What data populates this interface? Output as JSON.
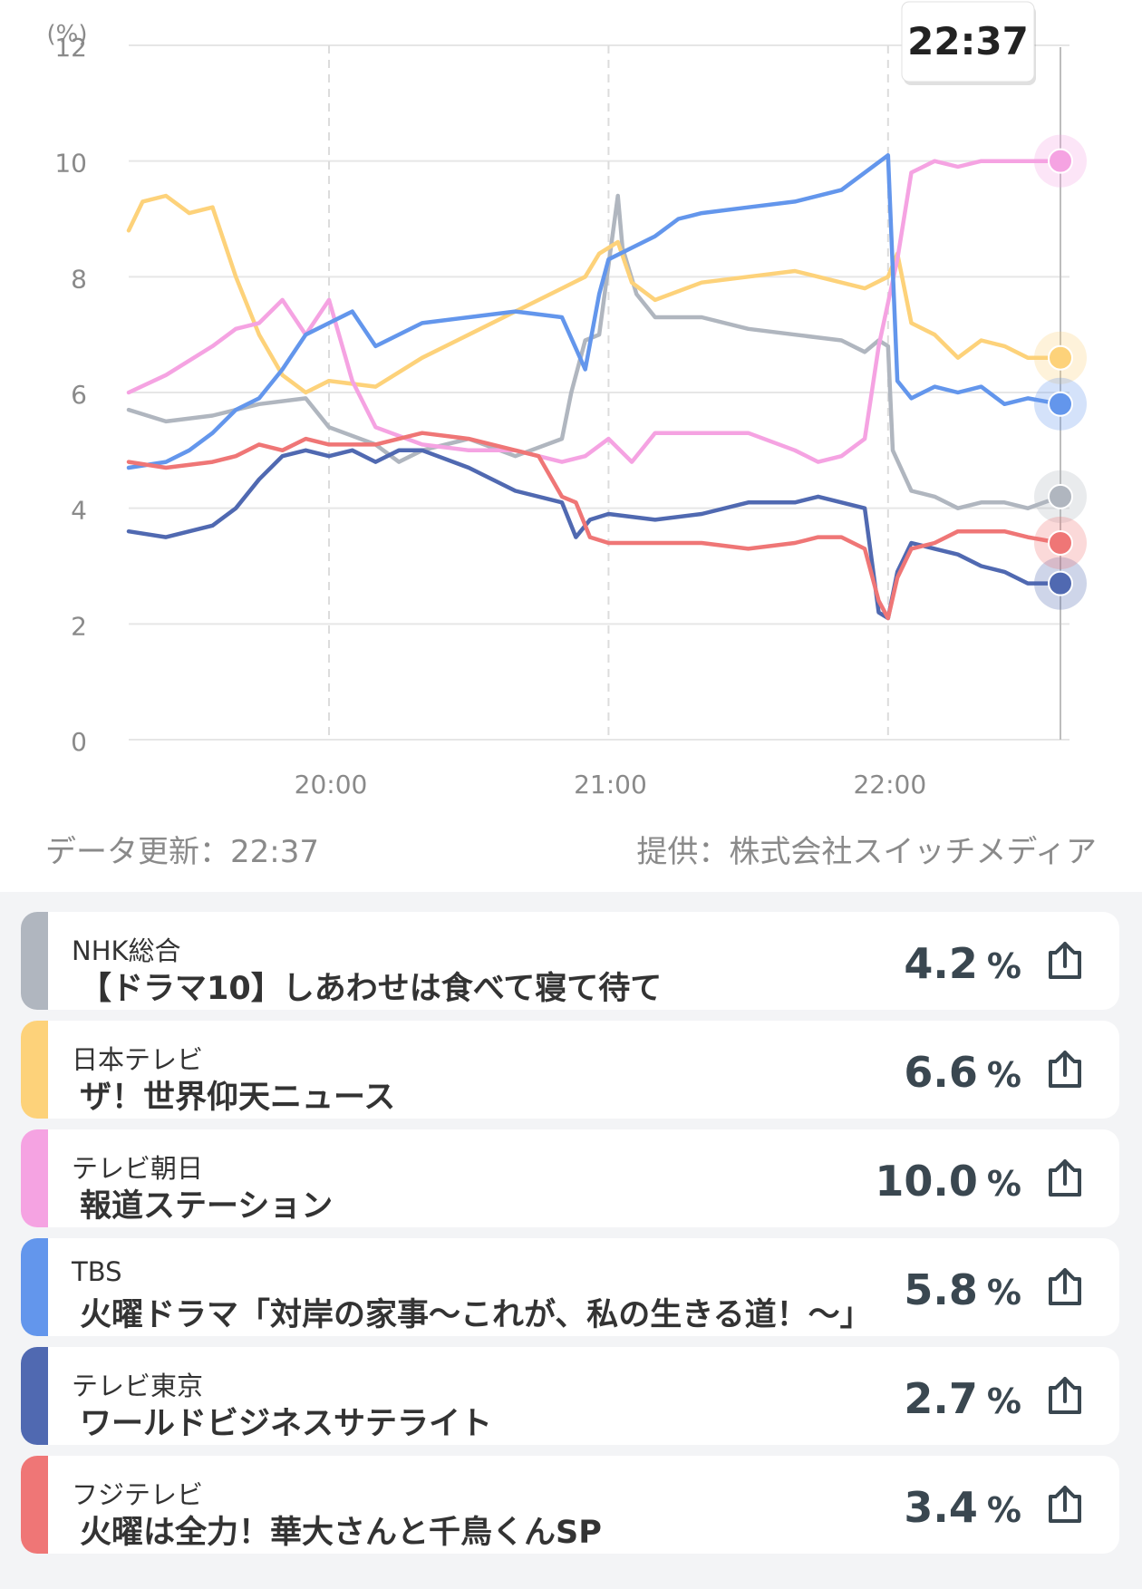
{
  "header": {
    "current_time": "22:37"
  },
  "footer": {
    "update": "データ更新：22:37",
    "provider": "提供：株式会社スイッチメディア"
  },
  "chart_data": {
    "type": "line",
    "ylabel": "(%)",
    "ylim": [
      0,
      12
    ],
    "yticks": [
      "0",
      "2",
      "4",
      "6",
      "8",
      "10",
      "12"
    ],
    "xticks": [
      {
        "label": "20:00",
        "t": 1200
      },
      {
        "label": "21:00",
        "t": 1260
      },
      {
        "label": "22:00",
        "t": 1320
      }
    ],
    "x_range_minutes": [
      1157,
      1357
    ],
    "cursor": {
      "label": "22:37",
      "t": 1357
    },
    "grid": true,
    "series": [
      {
        "name": "NHK総合",
        "color": "#b0b6bf",
        "points": [
          [
            1157,
            5.7
          ],
          [
            1165,
            5.5
          ],
          [
            1175,
            5.6
          ],
          [
            1185,
            5.8
          ],
          [
            1195,
            5.9
          ],
          [
            1200,
            5.4
          ],
          [
            1210,
            5.1
          ],
          [
            1215,
            4.8
          ],
          [
            1220,
            5.0
          ],
          [
            1230,
            5.2
          ],
          [
            1240,
            4.9
          ],
          [
            1250,
            5.2
          ],
          [
            1252,
            6.0
          ],
          [
            1255,
            6.9
          ],
          [
            1258,
            7.0
          ],
          [
            1260,
            8.2
          ],
          [
            1262,
            9.4
          ],
          [
            1263,
            8.5
          ],
          [
            1266,
            7.7
          ],
          [
            1270,
            7.3
          ],
          [
            1280,
            7.3
          ],
          [
            1290,
            7.1
          ],
          [
            1300,
            7.0
          ],
          [
            1310,
            6.9
          ],
          [
            1315,
            6.7
          ],
          [
            1318,
            6.9
          ],
          [
            1320,
            6.8
          ],
          [
            1321,
            5.0
          ],
          [
            1325,
            4.3
          ],
          [
            1330,
            4.2
          ],
          [
            1335,
            4.0
          ],
          [
            1340,
            4.1
          ],
          [
            1345,
            4.1
          ],
          [
            1350,
            4.0
          ],
          [
            1357,
            4.2
          ]
        ]
      },
      {
        "name": "日本テレビ",
        "color": "#fdd27a",
        "points": [
          [
            1157,
            8.8
          ],
          [
            1160,
            9.3
          ],
          [
            1165,
            9.4
          ],
          [
            1170,
            9.1
          ],
          [
            1175,
            9.2
          ],
          [
            1180,
            8.0
          ],
          [
            1185,
            7.0
          ],
          [
            1190,
            6.3
          ],
          [
            1195,
            6.0
          ],
          [
            1200,
            6.2
          ],
          [
            1210,
            6.1
          ],
          [
            1220,
            6.6
          ],
          [
            1230,
            7.0
          ],
          [
            1240,
            7.4
          ],
          [
            1250,
            7.8
          ],
          [
            1255,
            8.0
          ],
          [
            1258,
            8.4
          ],
          [
            1262,
            8.6
          ],
          [
            1265,
            7.9
          ],
          [
            1270,
            7.6
          ],
          [
            1280,
            7.9
          ],
          [
            1290,
            8.0
          ],
          [
            1300,
            8.1
          ],
          [
            1310,
            7.9
          ],
          [
            1315,
            7.8
          ],
          [
            1320,
            8.0
          ],
          [
            1322,
            8.4
          ],
          [
            1325,
            7.2
          ],
          [
            1330,
            7.0
          ],
          [
            1335,
            6.6
          ],
          [
            1340,
            6.9
          ],
          [
            1345,
            6.8
          ],
          [
            1350,
            6.6
          ],
          [
            1357,
            6.6
          ]
        ]
      },
      {
        "name": "テレビ朝日",
        "color": "#f5a3e2",
        "points": [
          [
            1157,
            6.0
          ],
          [
            1165,
            6.3
          ],
          [
            1175,
            6.8
          ],
          [
            1180,
            7.1
          ],
          [
            1185,
            7.2
          ],
          [
            1190,
            7.6
          ],
          [
            1195,
            7.0
          ],
          [
            1200,
            7.6
          ],
          [
            1205,
            6.2
          ],
          [
            1210,
            5.4
          ],
          [
            1220,
            5.1
          ],
          [
            1230,
            5.0
          ],
          [
            1240,
            5.0
          ],
          [
            1250,
            4.8
          ],
          [
            1255,
            4.9
          ],
          [
            1260,
            5.2
          ],
          [
            1265,
            4.8
          ],
          [
            1270,
            5.3
          ],
          [
            1280,
            5.3
          ],
          [
            1290,
            5.3
          ],
          [
            1300,
            5.0
          ],
          [
            1305,
            4.8
          ],
          [
            1310,
            4.9
          ],
          [
            1315,
            5.2
          ],
          [
            1318,
            6.8
          ],
          [
            1322,
            8.3
          ],
          [
            1325,
            9.8
          ],
          [
            1330,
            10.0
          ],
          [
            1335,
            9.9
          ],
          [
            1340,
            10.0
          ],
          [
            1345,
            10.0
          ],
          [
            1350,
            10.0
          ],
          [
            1357,
            10.0
          ]
        ]
      },
      {
        "name": "TBS",
        "color": "#6396ec",
        "points": [
          [
            1157,
            4.7
          ],
          [
            1165,
            4.8
          ],
          [
            1170,
            5.0
          ],
          [
            1175,
            5.3
          ],
          [
            1180,
            5.7
          ],
          [
            1185,
            5.9
          ],
          [
            1190,
            6.4
          ],
          [
            1195,
            7.0
          ],
          [
            1200,
            7.2
          ],
          [
            1205,
            7.4
          ],
          [
            1210,
            6.8
          ],
          [
            1220,
            7.2
          ],
          [
            1230,
            7.3
          ],
          [
            1240,
            7.4
          ],
          [
            1250,
            7.3
          ],
          [
            1255,
            6.4
          ],
          [
            1258,
            7.7
          ],
          [
            1260,
            8.3
          ],
          [
            1265,
            8.5
          ],
          [
            1270,
            8.7
          ],
          [
            1275,
            9.0
          ],
          [
            1280,
            9.1
          ],
          [
            1290,
            9.2
          ],
          [
            1300,
            9.3
          ],
          [
            1310,
            9.5
          ],
          [
            1315,
            9.8
          ],
          [
            1320,
            10.1
          ],
          [
            1322,
            6.2
          ],
          [
            1325,
            5.9
          ],
          [
            1330,
            6.1
          ],
          [
            1335,
            6.0
          ],
          [
            1340,
            6.1
          ],
          [
            1345,
            5.8
          ],
          [
            1350,
            5.9
          ],
          [
            1357,
            5.8
          ]
        ]
      },
      {
        "name": "テレビ東京",
        "color": "#5069b1",
        "points": [
          [
            1157,
            3.6
          ],
          [
            1165,
            3.5
          ],
          [
            1175,
            3.7
          ],
          [
            1180,
            4.0
          ],
          [
            1185,
            4.5
          ],
          [
            1190,
            4.9
          ],
          [
            1195,
            5.0
          ],
          [
            1200,
            4.9
          ],
          [
            1205,
            5.0
          ],
          [
            1210,
            4.8
          ],
          [
            1215,
            5.0
          ],
          [
            1220,
            5.0
          ],
          [
            1230,
            4.7
          ],
          [
            1240,
            4.3
          ],
          [
            1250,
            4.1
          ],
          [
            1253,
            3.5
          ],
          [
            1256,
            3.8
          ],
          [
            1260,
            3.9
          ],
          [
            1270,
            3.8
          ],
          [
            1280,
            3.9
          ],
          [
            1290,
            4.1
          ],
          [
            1300,
            4.1
          ],
          [
            1305,
            4.2
          ],
          [
            1310,
            4.1
          ],
          [
            1315,
            4.0
          ],
          [
            1318,
            2.2
          ],
          [
            1320,
            2.1
          ],
          [
            1322,
            2.9
          ],
          [
            1325,
            3.4
          ],
          [
            1330,
            3.3
          ],
          [
            1335,
            3.2
          ],
          [
            1340,
            3.0
          ],
          [
            1345,
            2.9
          ],
          [
            1350,
            2.7
          ],
          [
            1357,
            2.7
          ]
        ]
      },
      {
        "name": "フジテレビ",
        "color": "#ef7676",
        "points": [
          [
            1157,
            4.8
          ],
          [
            1165,
            4.7
          ],
          [
            1175,
            4.8
          ],
          [
            1180,
            4.9
          ],
          [
            1185,
            5.1
          ],
          [
            1190,
            5.0
          ],
          [
            1195,
            5.2
          ],
          [
            1200,
            5.1
          ],
          [
            1210,
            5.1
          ],
          [
            1220,
            5.3
          ],
          [
            1230,
            5.2
          ],
          [
            1240,
            5.0
          ],
          [
            1245,
            4.9
          ],
          [
            1250,
            4.2
          ],
          [
            1253,
            4.1
          ],
          [
            1256,
            3.5
          ],
          [
            1260,
            3.4
          ],
          [
            1270,
            3.4
          ],
          [
            1280,
            3.4
          ],
          [
            1290,
            3.3
          ],
          [
            1300,
            3.4
          ],
          [
            1305,
            3.5
          ],
          [
            1310,
            3.5
          ],
          [
            1315,
            3.3
          ],
          [
            1318,
            2.4
          ],
          [
            1320,
            2.1
          ],
          [
            1322,
            2.8
          ],
          [
            1325,
            3.3
          ],
          [
            1330,
            3.4
          ],
          [
            1335,
            3.6
          ],
          [
            1340,
            3.6
          ],
          [
            1345,
            3.6
          ],
          [
            1350,
            3.5
          ],
          [
            1357,
            3.4
          ]
        ]
      }
    ]
  },
  "channels": [
    {
      "channel": "NHK総合",
      "program": "【ドラマ10】しあわせは食べて寝て待て",
      "value": "4.2",
      "unit": "%",
      "color": "#b0b6bf"
    },
    {
      "channel": "日本テレビ",
      "program": "ザ！世界仰天ニュース",
      "value": "6.6",
      "unit": "%",
      "color": "#fdd27a"
    },
    {
      "channel": "テレビ朝日",
      "program": "報道ステーション",
      "value": "10.0",
      "unit": "%",
      "color": "#f5a3e2"
    },
    {
      "channel": "TBS",
      "program": "火曜ドラマ「対岸の家事～これが、私の生きる道！～」",
      "value": "5.8",
      "unit": "%",
      "color": "#6396ec"
    },
    {
      "channel": "テレビ東京",
      "program": "ワールドビジネスサテライト",
      "value": "2.7",
      "unit": "%",
      "color": "#5069b1"
    },
    {
      "channel": "フジテレビ",
      "program": "火曜は全力！華大さんと千鳥くんSP",
      "value": "3.4",
      "unit": "%",
      "color": "#ef7676"
    }
  ]
}
